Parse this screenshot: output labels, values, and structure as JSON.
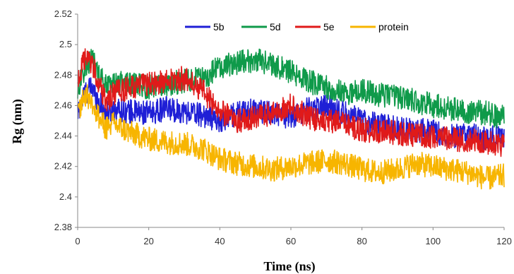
{
  "chart_data": {
    "type": "line",
    "title": "",
    "xlabel": "Time (ns)",
    "ylabel": "Rg (nm)",
    "xlim": [
      0,
      120
    ],
    "ylim": [
      2.38,
      2.52
    ],
    "xticks": [
      0,
      20,
      40,
      60,
      80,
      100,
      120
    ],
    "yticks": [
      "2.38",
      "2.4",
      "2.42",
      "2.44",
      "2.46",
      "2.48",
      "2.5",
      "2.52"
    ],
    "grid": false,
    "legend_position": "top",
    "series": [
      {
        "name": "5b",
        "color": "#1f1fd6",
        "x": [
          0,
          2,
          4,
          6,
          8,
          10,
          15,
          20,
          25,
          30,
          35,
          40,
          45,
          50,
          55,
          60,
          65,
          70,
          75,
          80,
          85,
          90,
          95,
          100,
          105,
          110,
          115,
          120
        ],
        "values": [
          2.455,
          2.468,
          2.472,
          2.462,
          2.455,
          2.458,
          2.456,
          2.455,
          2.458,
          2.456,
          2.454,
          2.45,
          2.455,
          2.457,
          2.455,
          2.452,
          2.458,
          2.46,
          2.455,
          2.45,
          2.447,
          2.445,
          2.444,
          2.443,
          2.44,
          2.441,
          2.438,
          2.44
        ],
        "noise": 0.008
      },
      {
        "name": "5d",
        "color": "#0f9a4a",
        "x": [
          0,
          2,
          4,
          6,
          8,
          10,
          15,
          20,
          25,
          30,
          35,
          40,
          45,
          50,
          55,
          60,
          65,
          70,
          75,
          80,
          85,
          90,
          95,
          100,
          105,
          110,
          115,
          120
        ],
        "values": [
          2.47,
          2.485,
          2.49,
          2.48,
          2.474,
          2.476,
          2.474,
          2.472,
          2.474,
          2.476,
          2.478,
          2.485,
          2.488,
          2.49,
          2.487,
          2.482,
          2.476,
          2.472,
          2.468,
          2.47,
          2.467,
          2.466,
          2.463,
          2.46,
          2.458,
          2.456,
          2.455,
          2.452
        ],
        "noise": 0.008
      },
      {
        "name": "5e",
        "color": "#e01a1a",
        "x": [
          0,
          2,
          4,
          6,
          8,
          10,
          15,
          20,
          25,
          30,
          35,
          40,
          45,
          50,
          55,
          60,
          65,
          70,
          75,
          80,
          85,
          90,
          95,
          100,
          105,
          110,
          115,
          120
        ],
        "values": [
          2.476,
          2.49,
          2.488,
          2.474,
          2.462,
          2.468,
          2.472,
          2.474,
          2.476,
          2.478,
          2.47,
          2.456,
          2.45,
          2.452,
          2.455,
          2.46,
          2.452,
          2.45,
          2.448,
          2.444,
          2.443,
          2.442,
          2.44,
          2.44,
          2.438,
          2.437,
          2.436,
          2.434
        ],
        "noise": 0.008
      },
      {
        "name": "protein",
        "color": "#f7b500",
        "x": [
          0,
          2,
          4,
          6,
          8,
          10,
          15,
          20,
          25,
          30,
          35,
          40,
          45,
          50,
          55,
          60,
          65,
          70,
          75,
          80,
          85,
          90,
          95,
          100,
          105,
          110,
          115,
          120
        ],
        "values": [
          2.455,
          2.468,
          2.462,
          2.452,
          2.445,
          2.448,
          2.442,
          2.438,
          2.436,
          2.435,
          2.432,
          2.425,
          2.422,
          2.42,
          2.418,
          2.42,
          2.422,
          2.424,
          2.422,
          2.418,
          2.416,
          2.418,
          2.422,
          2.42,
          2.418,
          2.416,
          2.412,
          2.414
        ],
        "noise": 0.008
      }
    ]
  }
}
